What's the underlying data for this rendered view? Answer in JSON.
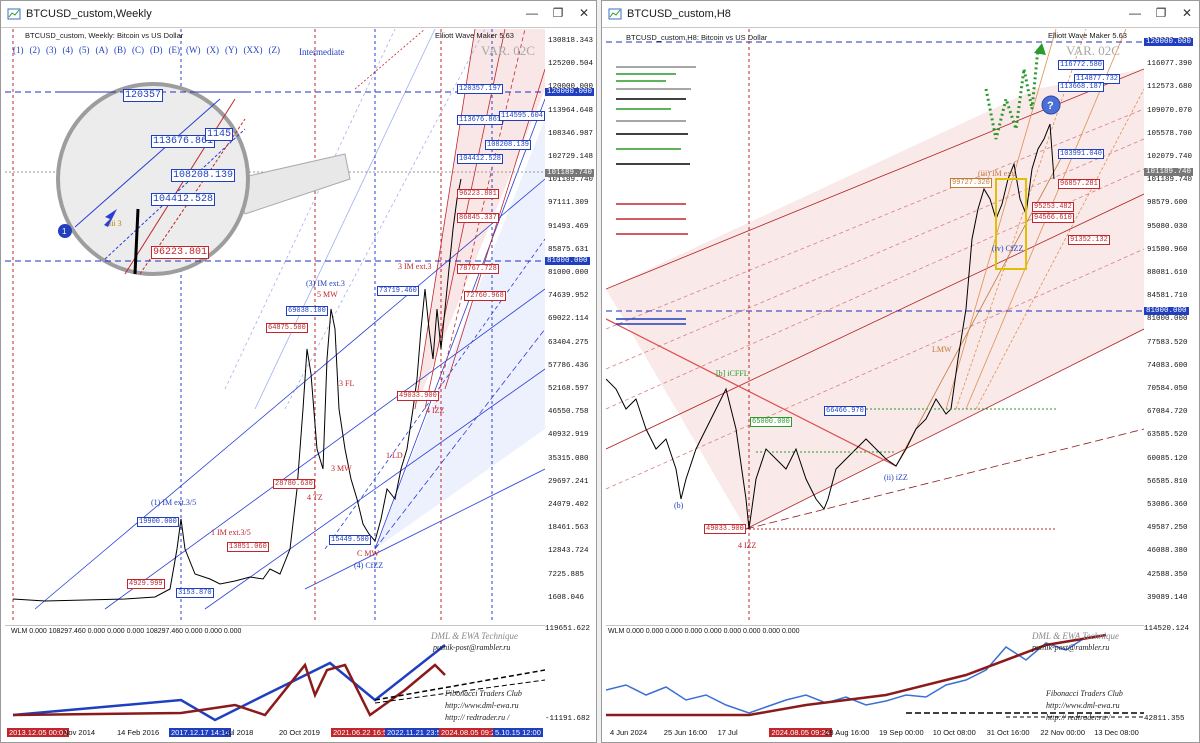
{
  "left": {
    "title": "BTCUSD_custom,Weekly",
    "symbol": "BTCUSD_custom, Weekly: Bitcoin vs US Dollar",
    "indicator": "Elliott Wave Maker 5.63",
    "variant": "VAR. 02C",
    "wave_nav": [
      "(1)",
      "(2)",
      "(3)",
      "(4)",
      "(5)",
      "(A)",
      "(B)",
      "(C)",
      "(D)",
      "(E)",
      "(W)",
      "(X)",
      "(Y)",
      "(XX)",
      "(Z)"
    ],
    "degree": "Intermediate",
    "price_ticks": [
      "130818.343",
      "125200.504",
      "120000.000",
      "113964.648",
      "108346.987",
      "102729.148",
      "101189.740",
      "97111.309",
      "91493.469",
      "85875.631",
      "81000.000",
      "74639.952",
      "69022.114",
      "63404.275",
      "57786.436",
      "52168.597",
      "46550.758",
      "40932.919",
      "35315.080",
      "29697.241",
      "24079.402",
      "18461.563",
      "12843.724",
      "7225.885",
      "1608.046"
    ],
    "hl_prices": {
      "p120k": "120000.000",
      "p101": "101189.740",
      "p81k": "81000.000"
    },
    "time_ticks": [
      {
        "t": "2013.12.05 00:00",
        "s": "r"
      },
      {
        "t": "Nov 2014",
        "s": ""
      },
      {
        "t": "14 Feb 2016",
        "s": ""
      },
      {
        "t": "2017.12.17 14:14",
        "s": "b"
      },
      {
        "t": "Jul 2018",
        "s": ""
      },
      {
        "t": "20 Oct 2019",
        "s": ""
      },
      {
        "t": "2021.06.22 16:55",
        "s": "r"
      },
      {
        "t": "2022.11.21 23:5",
        "s": "b"
      },
      {
        "t": "2024.08.05 09:24",
        "s": "r"
      },
      {
        "t": "5.10.15 12:00",
        "s": "b"
      }
    ],
    "sub_header": "WLM 0.000 108297.460 0.000 0.000 0.000 108297.460 0.000 0.000 0.000",
    "sub_ticks": [
      "119651.622",
      "-11191.682"
    ],
    "credit": [
      "DML & EWA Technique",
      "putnik-post@rambler.ru",
      "Fibonacci   Traders   Club",
      "http://www.dml-ewa.ru",
      "http:// redtrader.ru /"
    ],
    "zoom_labels": {
      "a": "120357",
      "b": "113676.861",
      "c": "108208.139",
      "d": "104412.528",
      "e": "96223.801",
      "f": "1145",
      "g": "iii 3"
    },
    "waves": {
      "w1": "(1) IM ext.3/5",
      "w3": "(3) IM ext.3",
      "w4": "(4) CfZZ",
      "w5": "5 MW",
      "x4": "x 4 TZ",
      "cmw": "C MW",
      "tz": "4 TZ",
      "ld": "1 LD",
      "izz": "4 IZZ",
      "im3": "3 IM ext.3",
      "im35": "1 IM ext.3/5",
      "fl": "3 FL",
      "mw3": "3 MW",
      "b4": "4"
    },
    "boxes": {
      "b19900": "19900.000",
      "b64875": "64875.500",
      "b69038": "69038.100",
      "b15449": "15449.500",
      "b4929": "4929.999",
      "b3163": "3153.870",
      "b13851": "13851.060",
      "b28780": "28780.630",
      "b49033": "49033.900",
      "b72760": "72760.968",
      "b73719": "73719.460",
      "b120357": "120357.197",
      "b113676": "113676.861",
      "b114595": "114595.604",
      "b108208": "108208.139",
      "b104412": "104412.528",
      "b96223": "96223.801",
      "b86845": "86845.337",
      "b78767": "78767.728"
    }
  },
  "right": {
    "title": "BTCUSD_custom,H8",
    "symbol": "BTCUSD_custom,H8: Bitcoin vs US Dollar",
    "indicator": "Elliott Wave Maker 5.63",
    "variant": "VAR. 02C",
    "price_ticks": [
      "120000.000",
      "116077.390",
      "112573.680",
      "109070.070",
      "105578.700",
      "102079.740",
      "101189.740",
      "98579.600",
      "95080.030",
      "91580.960",
      "88081.610",
      "84581.710",
      "81000.000",
      "77583.520",
      "74083.600",
      "70584.050",
      "67084.720",
      "63585.520",
      "60085.120",
      "56585.810",
      "53086.360",
      "49587.250",
      "46088.380",
      "42588.350",
      "39089.140"
    ],
    "hl_prices": {
      "p120k": "120000.000",
      "p101": "101189.740",
      "p81k": "81000.000"
    },
    "time_ticks": [
      {
        "t": "4 Jun 2024",
        "s": ""
      },
      {
        "t": "25 Jun 16:00",
        "s": ""
      },
      {
        "t": "17 Jul",
        "s": ""
      },
      {
        "t": "2024.08.05 09:24",
        "s": "r"
      },
      {
        "t": "28 Aug 16:00",
        "s": ""
      },
      {
        "t": "19 Sep 00:00",
        "s": ""
      },
      {
        "t": "10 Oct 08:00",
        "s": ""
      },
      {
        "t": "31 Oct 16:00",
        "s": ""
      },
      {
        "t": "22 Nov 00:00",
        "s": ""
      },
      {
        "t": "13 Dec 08:00",
        "s": ""
      }
    ],
    "sub_header": "WLM 0.000 0.000 0.000 0.000 0.000 0.000 0.000 0.000 0.000",
    "sub_ticks": [
      "114520.124",
      "42811.355"
    ],
    "credit": [
      "DML & EWA Technique",
      "putnik-post@rambler.ru",
      "Fibonacci   Traders   Club",
      "http://www.dml-ewa.ru",
      "http:// redtrader.ru /"
    ],
    "boxes": {
      "b116772": "116772.580",
      "b114877": "114877.732",
      "b113668": "113668.187",
      "b103991": "103991.040",
      "b99727": "99727.320",
      "b96857": "96857.281",
      "b95253": "95253.482",
      "b94566": "94566.610",
      "b91352": "91352.132",
      "b65000": "65000.000",
      "b66466": "66466.970",
      "b49033": "49033.900"
    },
    "waves": {
      "izz": "4 IZZ",
      "bcffl": "[b] iCFFL",
      "izz2": "(ii) iZZ",
      "lmw": "LMW",
      "iim": "(iii) IM ext.",
      "bb": "(b)",
      "cc": "c",
      "iicfzz": "(iv) CfZZ"
    }
  }
}
